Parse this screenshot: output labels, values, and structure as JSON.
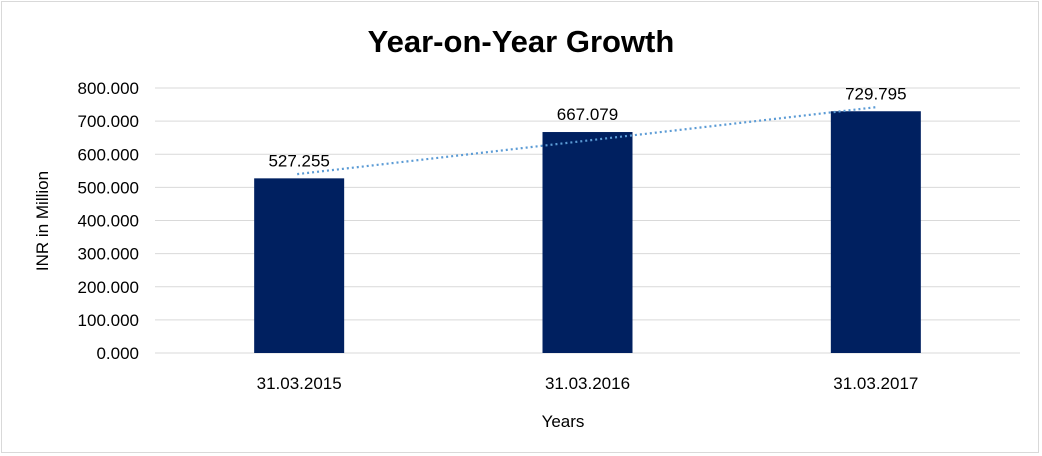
{
  "chart_data": {
    "type": "bar",
    "title": "Year-on-Year Growth",
    "xlabel": "Years",
    "ylabel": "INR in Million",
    "categories": [
      "31.03.2015",
      "31.03.2016",
      "31.03.2017"
    ],
    "values": [
      527.255,
      667.079,
      729.795
    ],
    "data_labels": [
      "527.255",
      "667.079",
      "729.795"
    ],
    "ylim": [
      0,
      800
    ],
    "yticks": [
      0,
      100,
      200,
      300,
      400,
      500,
      600,
      700,
      800
    ],
    "ytick_labels": [
      "0.000",
      "100.000",
      "200.000",
      "300.000",
      "400.000",
      "500.000",
      "600.000",
      "700.000",
      "800.000"
    ],
    "grid": true,
    "legend": "none",
    "trendline": {
      "type": "linear",
      "style": "dotted",
      "start": 540,
      "end": 742
    },
    "colors": {
      "bar": "#002060",
      "trendline": "#5b9bd5",
      "grid": "#d9d9d9"
    }
  }
}
